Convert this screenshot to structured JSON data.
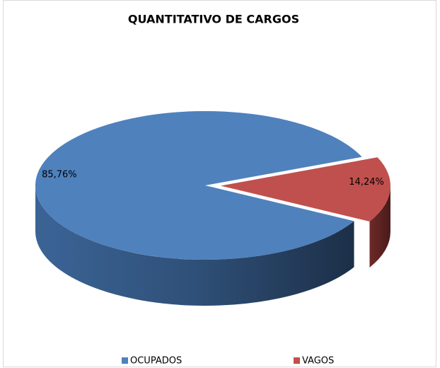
{
  "chart_data": {
    "type": "pie3d",
    "title": "QUANTITATIVO DE CARGOS",
    "categories": [
      "OCUPADOS",
      "VAGOS"
    ],
    "values": [
      85.76,
      14.24
    ],
    "value_labels": [
      "85,76%",
      "14,24%"
    ],
    "colors": [
      "#4f81bd",
      "#c0504d"
    ],
    "legend": "bottom"
  }
}
